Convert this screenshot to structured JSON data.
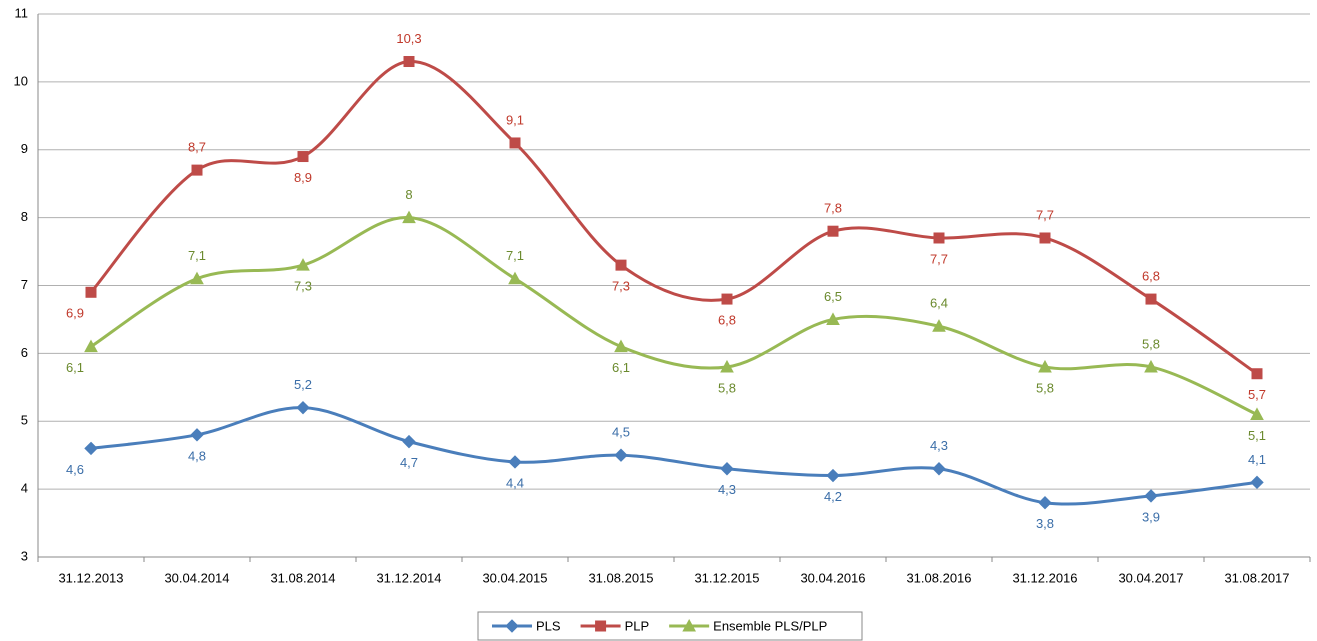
{
  "chart_data": {
    "type": "line",
    "categories": [
      "31.12.2013",
      "30.04.2014",
      "31.08.2014",
      "31.12.2014",
      "30.04.2015",
      "31.08.2015",
      "31.12.2015",
      "30.04.2016",
      "31.08.2016",
      "31.12.2016",
      "30.04.2017",
      "31.08.2017"
    ],
    "series": [
      {
        "name": "PLS",
        "color": "#4a7ebb",
        "marker": "diamond",
        "values": [
          4.6,
          4.8,
          5.2,
          4.7,
          4.4,
          4.5,
          4.3,
          4.2,
          4.3,
          3.8,
          3.9,
          4.1
        ],
        "value_labels": [
          "4,6",
          "4,8",
          "5,2",
          "4,7",
          "4,4",
          "4,5",
          "4,3",
          "4,2",
          "4,3",
          "3,8",
          "3,9",
          "4,1"
        ]
      },
      {
        "name": "PLP",
        "color": "#be4b48",
        "marker": "square",
        "values": [
          6.9,
          8.7,
          8.9,
          10.3,
          9.1,
          7.3,
          6.8,
          7.8,
          7.7,
          7.7,
          6.8,
          5.7
        ],
        "value_labels": [
          "6,9",
          "8,7",
          "8,9",
          "10,3",
          "9,1",
          "7,3",
          "6,8",
          "7,8",
          "7,7",
          "7,7",
          "6,8",
          "5,7"
        ]
      },
      {
        "name": "Ensemble PLS/PLP",
        "color": "#98b954",
        "marker": "triangle",
        "values": [
          6.1,
          7.1,
          7.3,
          8,
          7.1,
          6.1,
          5.8,
          6.5,
          6.4,
          5.8,
          5.8,
          5.1
        ],
        "value_labels": [
          "6,1",
          "7,1",
          "7,3",
          "8",
          "7,1",
          "6,1",
          "5,8",
          "6,5",
          "6,4",
          "5,8",
          "5,8",
          "5,1"
        ]
      }
    ],
    "ylim": [
      3,
      11
    ],
    "yticks": [
      3,
      4,
      5,
      6,
      7,
      8,
      9,
      10,
      11
    ],
    "grid": true,
    "smooth": true,
    "legend": "bottom"
  }
}
